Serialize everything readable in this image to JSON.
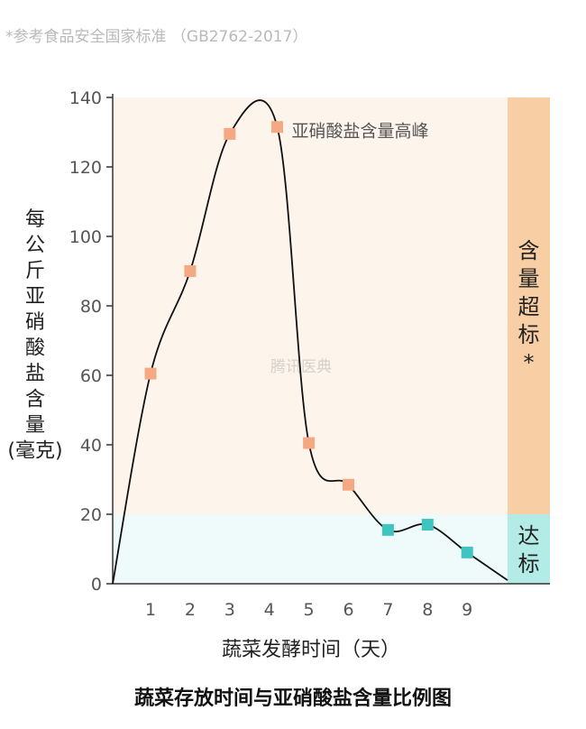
{
  "source_note": "*参考食品安全国家标准 （GB2762-2017）",
  "caption": "蔬菜存放时间与亚硝酸盐含量比例图",
  "watermark": "腾讯医典",
  "colors": {
    "exceed_bg": "#fdf4ec",
    "exceed_band": "#f8cfa5",
    "ok_bg": "#eefbfa",
    "ok_band": "#b3ece6",
    "marker_high": "#f5a982",
    "marker_ok": "#3fc4c0",
    "line": "#111111"
  },
  "chart_data": {
    "type": "line",
    "title": "蔬菜存放时间与亚硝酸盐含量比例图",
    "xlabel": "蔬菜发酵时间（天）",
    "ylabel_chars": [
      "每",
      "公",
      "斤",
      "亚",
      "硝",
      "酸",
      "盐",
      "含",
      "量",
      "(毫克)"
    ],
    "ylim": [
      0,
      140
    ],
    "yticks": [
      0,
      20,
      40,
      60,
      80,
      100,
      120,
      140
    ],
    "xticks": [
      1,
      2,
      3,
      4,
      5,
      6,
      7,
      8,
      9
    ],
    "xlim": [
      0,
      10
    ],
    "threshold": 20,
    "regions": [
      {
        "label_chars": [
          "含",
          "量",
          "超",
          "标",
          "*"
        ],
        "from": 20,
        "to": 140
      },
      {
        "label_chars": [
          "达",
          "标"
        ],
        "from": 0,
        "to": 20
      }
    ],
    "points": [
      {
        "x": 0,
        "y": 0,
        "marker": false
      },
      {
        "x": 1,
        "y": 60.5,
        "marker": true
      },
      {
        "x": 2,
        "y": 90,
        "marker": true
      },
      {
        "x": 3,
        "y": 129.5,
        "marker": true
      },
      {
        "x": 4.2,
        "y": 131.5,
        "marker": true
      },
      {
        "x": 5,
        "y": 40.5,
        "marker": true
      },
      {
        "x": 6,
        "y": 28.5,
        "marker": true
      },
      {
        "x": 7,
        "y": 15.5,
        "marker": true
      },
      {
        "x": 8,
        "y": 17,
        "marker": true
      },
      {
        "x": 9,
        "y": 9,
        "marker": true
      },
      {
        "x": 10,
        "y": 1,
        "marker": false
      }
    ],
    "annotations": [
      {
        "text": "亚硝酸盐含量高峰",
        "x": 4.2,
        "y": 131.5
      }
    ]
  }
}
